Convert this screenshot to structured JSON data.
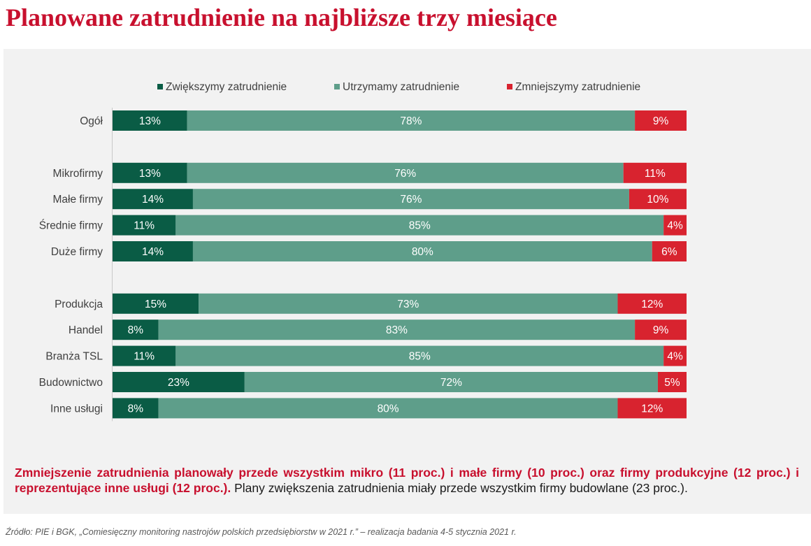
{
  "title": "Planowane zatrudnienie na najbliższe trzy miesiące",
  "colors": {
    "title": "#c8102e",
    "increase": "#0a5c45",
    "maintain": "#5e9e8a",
    "decrease": "#d8232f",
    "panel": "#f2f2f2"
  },
  "chart_data": {
    "type": "bar",
    "orientation": "horizontal-stacked-100",
    "legend_position": "top",
    "series": [
      {
        "name": "Zwiększymy zatrudnienie",
        "values": [
          13,
          13,
          14,
          11,
          14,
          15,
          8,
          11,
          23,
          8
        ]
      },
      {
        "name": "Utrzymamy zatrudnienie",
        "values": [
          78,
          76,
          76,
          85,
          80,
          73,
          83,
          85,
          72,
          80
        ]
      },
      {
        "name": "Zmniejszymy zatrudnienie",
        "values": [
          9,
          11,
          10,
          4,
          6,
          12,
          9,
          4,
          5,
          12
        ]
      }
    ],
    "categories": [
      "Ogół",
      "Mikrofirmy",
      "Małe firmy",
      "Średnie firmy",
      "Duże firmy",
      "Produkcja",
      "Handel",
      "Branża TSL",
      "Budownictwo",
      "Inne usługi"
    ],
    "groups": [
      [
        "Ogół"
      ],
      [
        "Mikrofirmy",
        "Małe firmy",
        "Średnie firmy",
        "Duże firmy"
      ],
      [
        "Produkcja",
        "Handel",
        "Branża TSL",
        "Budownictwo",
        "Inne usługi"
      ]
    ],
    "value_suffix": "%"
  },
  "summary": {
    "highlight": "Zmniejszenie zatrudnienia planowały przede wszystkim mikro (11 proc.) i małe firmy (10 proc.) oraz firmy produkcyjne (12 proc.) i reprezentujące inne usługi (12 proc.).",
    "rest": " Plany zwiększenia zatrudnienia miały przede wszystkim firmy budowlane (23 proc.)."
  },
  "source": "Źródło: PIE i BGK, „Comiesięczny monitoring nastrojów polskich przedsiębiorstw w 2021 r.” – realizacja badania 4-5 stycznia 2021 r."
}
